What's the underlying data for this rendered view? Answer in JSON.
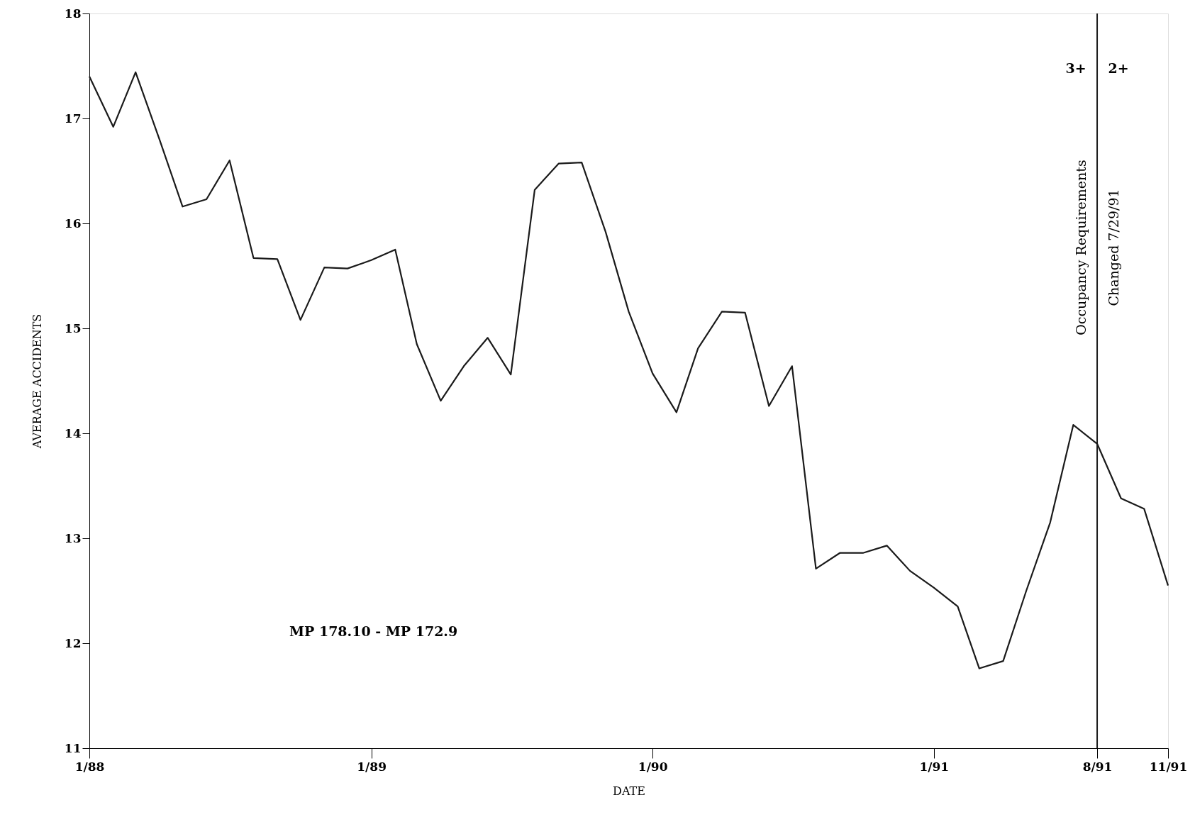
{
  "chart_data": {
    "type": "line",
    "xlabel": "DATE",
    "ylabel": "AVERAGE ACCIDENTS",
    "x": [
      "1988-01",
      "1988-02",
      "1988-03",
      "1988-04",
      "1988-05",
      "1988-06",
      "1988-07",
      "1988-08",
      "1988-09",
      "1988-10",
      "1988-11",
      "1988-12",
      "1989-01",
      "1989-02",
      "1989-03",
      "1989-04",
      "1989-05",
      "1989-06",
      "1989-07",
      "1989-08",
      "1989-09",
      "1989-10",
      "1989-11",
      "1989-12",
      "1990-01",
      "1990-02",
      "1990-03",
      "1990-04",
      "1990-05",
      "1990-06",
      "1990-07",
      "1990-08",
      "1990-09",
      "1990-10",
      "1990-11",
      "1990-12",
      "1991-01",
      "1991-02",
      "1991-03",
      "1991-04",
      "1991-05",
      "1991-06",
      "1991-07",
      "1991-08",
      "1991-09",
      "1991-10",
      "1991-11"
    ],
    "series": [
      {
        "color": "#1a1a1a",
        "values": [
          17.4,
          16.92,
          17.44,
          16.8,
          16.16,
          16.23,
          16.6,
          15.67,
          15.66,
          15.08,
          15.58,
          15.57,
          15.65,
          15.75,
          14.85,
          14.31,
          14.64,
          14.91,
          14.56,
          16.32,
          16.57,
          16.58,
          15.92,
          15.16,
          14.57,
          14.2,
          14.81,
          15.16,
          15.15,
          14.26,
          14.64,
          12.71,
          12.86,
          12.86,
          12.93,
          12.69,
          12.53,
          12.35,
          11.76,
          11.83,
          12.5,
          13.15,
          14.08,
          13.9,
          13.38,
          13.28,
          12.55
        ]
      }
    ],
    "xlim": [
      "1988-01",
      "1991-11"
    ],
    "xticks": [
      {
        "value": "1988-01",
        "label": "1/88"
      },
      {
        "value": "1989-01",
        "label": "1/89"
      },
      {
        "value": "1990-01",
        "label": "1/90"
      },
      {
        "value": "1991-01",
        "label": "1/91"
      },
      {
        "value": "1991-08",
        "label": "8/91"
      },
      {
        "value": "1991-11",
        "label": "11/91"
      }
    ],
    "ylim": [
      11,
      18
    ],
    "yticks": [
      11,
      12,
      13,
      14,
      15,
      16,
      17,
      18
    ],
    "ref_lines": [
      {
        "axis": "x",
        "value": "1991-08",
        "label": "Occupancy Requirements\nChanged 7/29/91",
        "color": "#1a1a1a"
      }
    ],
    "annotations": [
      "MP 178.10 - MP 172.9",
      "3+",
      "2+"
    ],
    "grid": false,
    "marker": "none",
    "line_style": "solid"
  }
}
